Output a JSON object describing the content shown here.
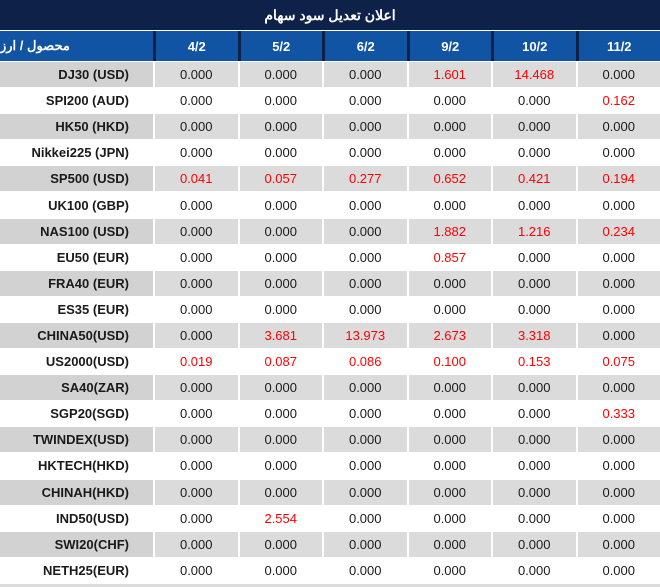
{
  "title": "اعلان تعديل سود سهام",
  "colors": {
    "title_bg": "#0d2149",
    "header_bg": "#1254a4",
    "row_gray": "#dbdbdb",
    "label_gray": "#d2d2d2",
    "value_black": "#1a1a1a",
    "value_red": "#ff0000"
  },
  "table": {
    "product_header": "محصول / ارز",
    "date_columns": [
      "4/2",
      "5/2",
      "6/2",
      "9/2",
      "10/2",
      "11/2"
    ],
    "rows": [
      {
        "label": "DJ30 (USD)",
        "values": [
          "0.000",
          "0.000",
          "0.000",
          "1.601",
          "14.468",
          "0.000"
        ],
        "red": [
          false,
          false,
          false,
          true,
          true,
          false
        ]
      },
      {
        "label": "SPI200 (AUD)",
        "values": [
          "0.000",
          "0.000",
          "0.000",
          "0.000",
          "0.000",
          "0.162"
        ],
        "red": [
          false,
          false,
          false,
          false,
          false,
          true
        ]
      },
      {
        "label": "HK50 (HKD)",
        "values": [
          "0.000",
          "0.000",
          "0.000",
          "0.000",
          "0.000",
          "0.000"
        ],
        "red": [
          false,
          false,
          false,
          false,
          false,
          false
        ]
      },
      {
        "label": "Nikkei225 (JPN)",
        "values": [
          "0.000",
          "0.000",
          "0.000",
          "0.000",
          "0.000",
          "0.000"
        ],
        "red": [
          false,
          false,
          false,
          false,
          false,
          false
        ]
      },
      {
        "label": "SP500 (USD)",
        "values": [
          "0.041",
          "0.057",
          "0.277",
          "0.652",
          "0.421",
          "0.194"
        ],
        "red": [
          true,
          true,
          true,
          true,
          true,
          true
        ]
      },
      {
        "label": "UK100 (GBP)",
        "values": [
          "0.000",
          "0.000",
          "0.000",
          "0.000",
          "0.000",
          "0.000"
        ],
        "red": [
          false,
          false,
          false,
          false,
          false,
          false
        ]
      },
      {
        "label": "NAS100 (USD)",
        "values": [
          "0.000",
          "0.000",
          "0.000",
          "1.882",
          "1.216",
          "0.234"
        ],
        "red": [
          false,
          false,
          false,
          true,
          true,
          true
        ]
      },
      {
        "label": "EU50 (EUR)",
        "values": [
          "0.000",
          "0.000",
          "0.000",
          "0.857",
          "0.000",
          "0.000"
        ],
        "red": [
          false,
          false,
          false,
          true,
          false,
          false
        ]
      },
      {
        "label": "FRA40 (EUR)",
        "values": [
          "0.000",
          "0.000",
          "0.000",
          "0.000",
          "0.000",
          "0.000"
        ],
        "red": [
          false,
          false,
          false,
          false,
          false,
          false
        ]
      },
      {
        "label": "ES35 (EUR)",
        "values": [
          "0.000",
          "0.000",
          "0.000",
          "0.000",
          "0.000",
          "0.000"
        ],
        "red": [
          false,
          false,
          false,
          false,
          false,
          false
        ]
      },
      {
        "label": "CHINA50(USD)",
        "values": [
          "0.000",
          "3.681",
          "13.973",
          "2.673",
          "3.318",
          "0.000"
        ],
        "red": [
          false,
          true,
          true,
          true,
          true,
          false
        ]
      },
      {
        "label": "US2000(USD)",
        "values": [
          "0.019",
          "0.087",
          "0.086",
          "0.100",
          "0.153",
          "0.075"
        ],
        "red": [
          true,
          true,
          true,
          true,
          true,
          true
        ]
      },
      {
        "label": "SA40(ZAR)",
        "values": [
          "0.000",
          "0.000",
          "0.000",
          "0.000",
          "0.000",
          "0.000"
        ],
        "red": [
          false,
          false,
          false,
          false,
          false,
          false
        ]
      },
      {
        "label": "SGP20(SGD)",
        "values": [
          "0.000",
          "0.000",
          "0.000",
          "0.000",
          "0.000",
          "0.333"
        ],
        "red": [
          false,
          false,
          false,
          false,
          false,
          true
        ]
      },
      {
        "label": "TWINDEX(USD)",
        "values": [
          "0.000",
          "0.000",
          "0.000",
          "0.000",
          "0.000",
          "0.000"
        ],
        "red": [
          false,
          false,
          false,
          false,
          false,
          false
        ]
      },
      {
        "label": "HKTECH(HKD)",
        "values": [
          "0.000",
          "0.000",
          "0.000",
          "0.000",
          "0.000",
          "0.000"
        ],
        "red": [
          false,
          false,
          false,
          false,
          false,
          false
        ]
      },
      {
        "label": "CHINAH(HKD)",
        "values": [
          "0.000",
          "0.000",
          "0.000",
          "0.000",
          "0.000",
          "0.000"
        ],
        "red": [
          false,
          false,
          false,
          false,
          false,
          false
        ]
      },
      {
        "label": "IND50(USD)",
        "values": [
          "0.000",
          "2.554",
          "0.000",
          "0.000",
          "0.000",
          "0.000"
        ],
        "red": [
          false,
          true,
          false,
          false,
          false,
          false
        ]
      },
      {
        "label": "SWI20(CHF)",
        "values": [
          "0.000",
          "0.000",
          "0.000",
          "0.000",
          "0.000",
          "0.000"
        ],
        "red": [
          false,
          false,
          false,
          false,
          false,
          false
        ]
      },
      {
        "label": "NETH25(EUR)",
        "values": [
          "0.000",
          "0.000",
          "0.000",
          "0.000",
          "0.000",
          "0.000"
        ],
        "red": [
          false,
          false,
          false,
          false,
          false,
          false
        ]
      }
    ]
  }
}
